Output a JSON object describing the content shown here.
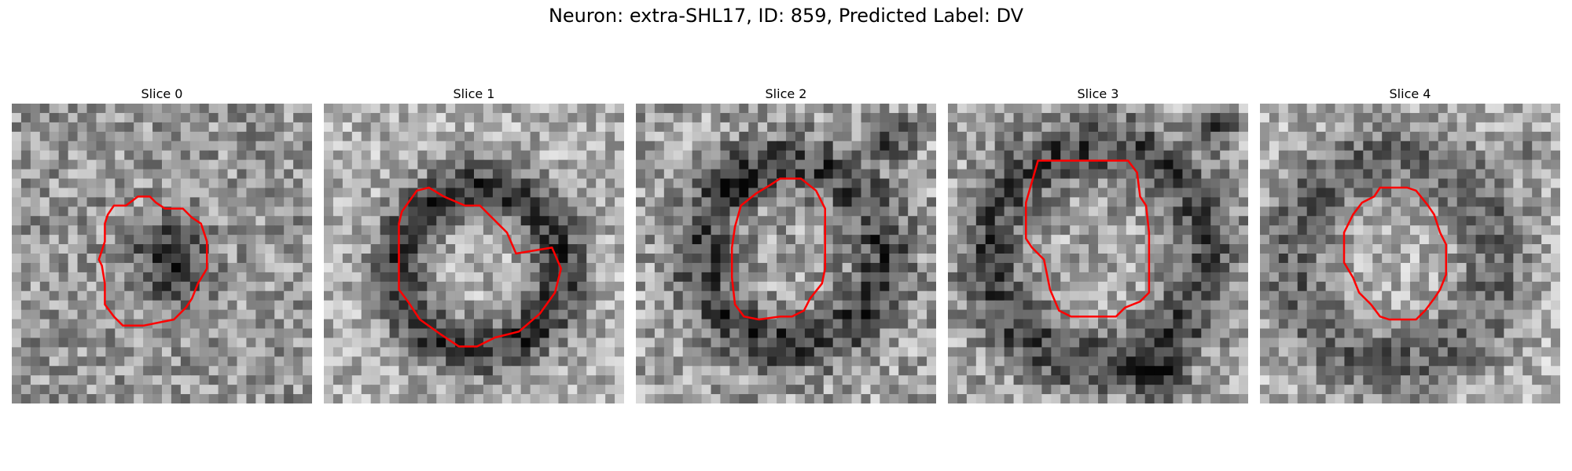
{
  "figure": {
    "title": "Neuron: extra-SHL17, ID: 859, Predicted Label: DV"
  },
  "panels": [
    {
      "title": "Slice 0",
      "contour_color": "#ff0000",
      "image": "grayscale-microscopy-patch"
    },
    {
      "title": "Slice 1",
      "contour_color": "#ff0000",
      "image": "grayscale-microscopy-patch"
    },
    {
      "title": "Slice 2",
      "contour_color": "#ff0000",
      "image": "grayscale-microscopy-patch"
    },
    {
      "title": "Slice 3",
      "contour_color": "#ff0000",
      "image": "grayscale-microscopy-patch"
    },
    {
      "title": "Slice 4",
      "contour_color": "#ff0000",
      "image": "grayscale-microscopy-patch"
    }
  ]
}
